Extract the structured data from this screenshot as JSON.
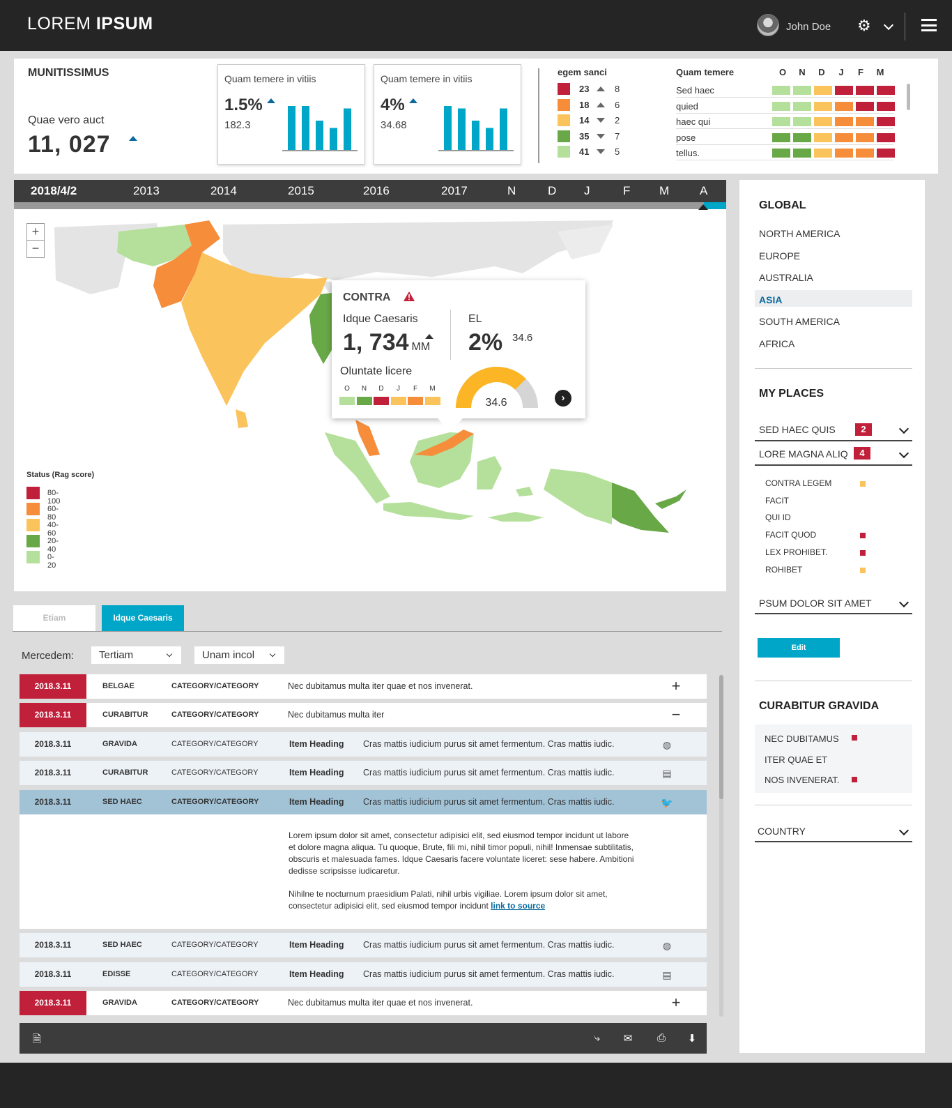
{
  "header": {
    "logo_light": "LOREM",
    "logo_bold": "IPSUM",
    "user_name": "John Doe"
  },
  "summary": {
    "title": "MUNITISSIMUS",
    "label": "Quae vero auct",
    "value": "11, 027"
  },
  "cards": [
    {
      "title": "Quam temere in vitiis",
      "pct": "1.5%",
      "sub": "182.3",
      "bars": [
        0.9,
        0.9,
        0.6,
        0.45,
        0.85
      ]
    },
    {
      "title": "Quam temere in vitiis",
      "pct": "4%",
      "sub": "34.68",
      "bars": [
        0.9,
        0.85,
        0.6,
        0.45,
        0.85
      ]
    }
  ],
  "egem": {
    "title": "egem sanci",
    "rows": [
      {
        "color": "#c0203a",
        "a": "23",
        "dir": "up",
        "b": "8"
      },
      {
        "color": "#f58d3b",
        "a": "18",
        "dir": "up",
        "b": "6"
      },
      {
        "color": "#fbc35c",
        "a": "14",
        "dir": "down",
        "b": "2"
      },
      {
        "color": "#68a847",
        "a": "35",
        "dir": "down",
        "b": "7"
      },
      {
        "color": "#b5e09b",
        "a": "41",
        "dir": "down",
        "b": "5"
      }
    ]
  },
  "quam": {
    "title": "Quam temere",
    "months": [
      "O",
      "N",
      "D",
      "J",
      "F",
      "M"
    ],
    "rows": [
      {
        "label": "Sed haec",
        "cells": [
          "#b5e09b",
          "#b5e09b",
          "#fbc35c",
          "#c0203a",
          "#c0203a",
          "#c0203a"
        ]
      },
      {
        "label": "quied",
        "cells": [
          "#b5e09b",
          "#b5e09b",
          "#fbc35c",
          "#f58d3b",
          "#c0203a",
          "#c0203a"
        ]
      },
      {
        "label": "haec qui",
        "cells": [
          "#b5e09b",
          "#b5e09b",
          "#fbc35c",
          "#f58d3b",
          "#f58d3b",
          "#c0203a"
        ]
      },
      {
        "label": "pose",
        "cells": [
          "#68a847",
          "#68a847",
          "#fbc35c",
          "#f58d3b",
          "#f58d3b",
          "#c0203a"
        ]
      },
      {
        "label": "tellus.",
        "cells": [
          "#68a847",
          "#68a847",
          "#fbc35c",
          "#f58d3b",
          "#f58d3b",
          "#c0203a"
        ]
      }
    ]
  },
  "timeline": [
    "2018/4/2",
    "2013",
    "2014",
    "2015",
    "2016",
    "2017",
    "N",
    "D",
    "J",
    "F",
    "M",
    "A"
  ],
  "map": {
    "zoom_in": "+",
    "zoom_out": "−",
    "legend": {
      "title": "Status (Rag score)",
      "items": [
        {
          "color": "#c0203a",
          "label": "80-100"
        },
        {
          "color": "#f58d3b",
          "label": "60-80"
        },
        {
          "color": "#fbc35c",
          "label": "40-60"
        },
        {
          "color": "#68a847",
          "label": "20-40"
        },
        {
          "color": "#b5e09b",
          "label": "0-20"
        }
      ]
    }
  },
  "popup": {
    "title": "CONTRA",
    "subtitle": "Idque Caesaris",
    "value": "1, 734",
    "unit": "MM",
    "el_label": "EL",
    "el_pct": "2%",
    "el_value": "34.6",
    "oluntate": "Oluntate licere",
    "months": [
      "O",
      "N",
      "D",
      "J",
      "F",
      "M"
    ],
    "cells": [
      "#b5e09b",
      "#68a847",
      "#c0203a",
      "#fbc35c",
      "#f58d3b",
      "#fbc35c"
    ],
    "gauge_value": "34.6",
    "gauge_fraction": 0.75
  },
  "sidebar": {
    "global_title": "GLOBAL",
    "regions": [
      "NORTH AMERICA",
      "EUROPE",
      "AUSTRALIA",
      "ASIA",
      "SOUTH AMERICA",
      "AFRICA"
    ],
    "active_region": "ASIA",
    "places_title": "MY PLACES",
    "groups": [
      {
        "label": "SED HAEC QUIS",
        "count": "2"
      },
      {
        "label": "LORE MAGNA ALIQ",
        "count": "4"
      }
    ],
    "items": [
      {
        "label": "CONTRA LEGEM",
        "color": "#fbc35c"
      },
      {
        "label": "FACIT",
        "color": ""
      },
      {
        "label": "QUI ID",
        "color": ""
      },
      {
        "label": "FACIT QUOD",
        "color": "#c0203a"
      },
      {
        "label": "LEX PROHIBET.",
        "color": "#c0203a"
      },
      {
        "label": "ROHIBET",
        "color": "#fbc35c"
      }
    ],
    "group3": "PSUM DOLOR SIT AMET",
    "edit": "Edit",
    "cura_title": "CURABITUR GRAVIDA",
    "cura_items": [
      {
        "label": "NEC DUBITAMUS",
        "color": "#c0203a"
      },
      {
        "label": "ITER QUAE ET",
        "color": ""
      },
      {
        "label": "NOS INVENERAT.",
        "color": "#c0203a"
      }
    ],
    "country": "COUNTRY"
  },
  "tabs": [
    "Etiam",
    "Idque Caesaris"
  ],
  "filters": {
    "label": "Mercedem:",
    "select1": "Tertiam",
    "select2": "Unam incol"
  },
  "table": [
    {
      "date": "2018.3.11",
      "name": "BELGAE",
      "cat": "CATEGORY/CATEGORY",
      "heading": "",
      "desc": "Nec dubitamus multa iter quae et nos invenerat.",
      "type": "red",
      "action": "+",
      "icon": ""
    },
    {
      "date": "2018.3.11",
      "name": "CURABITUR",
      "cat": "CATEGORY/CATEGORY",
      "heading": "",
      "desc": "Nec dubitamus multa iter",
      "type": "red",
      "action": "−",
      "icon": ""
    },
    {
      "date": "2018.3.11",
      "name": "GRAVIDA",
      "cat": "CATEGORY/CATEGORY",
      "heading": "Item Heading",
      "desc": "Cras mattis iudicium purus sit amet fermentum. Cras mattis iudic.",
      "type": "light",
      "action": "",
      "icon": "globe-icon"
    },
    {
      "date": "2018.3.11",
      "name": "CURABITUR",
      "cat": "CATEGORY/CATEGORY",
      "heading": "Item Heading",
      "desc": "Cras mattis iudicium purus sit amet fermentum. Cras mattis iudic.",
      "type": "light",
      "action": "",
      "icon": "news-icon"
    },
    {
      "date": "2018.3.11",
      "name": "SED HAEC",
      "cat": "CATEGORY/CATEGORY",
      "heading": "Item Heading",
      "desc": "Cras mattis iudicium purus sit amet fermentum. Cras mattis iudic.",
      "type": "selected",
      "action": "",
      "icon": "twitter-icon"
    },
    {
      "date": "2018.3.11",
      "name": "SED HAEC",
      "cat": "CATEGORY/CATEGORY",
      "heading": "Item Heading",
      "desc": "Cras mattis iudicium purus sit amet fermentum. Cras mattis iudic.",
      "type": "light",
      "action": "",
      "icon": "globe-icon"
    },
    {
      "date": "2018.3.11",
      "name": "EDISSE",
      "cat": "CATEGORY/CATEGORY",
      "heading": "Item Heading",
      "desc": "Cras mattis iudicium purus sit amet fermentum. Cras mattis iudic.",
      "type": "light",
      "action": "",
      "icon": "news-icon"
    },
    {
      "date": "2018.3.11",
      "name": "GRAVIDA",
      "cat": "CATEGORY/CATEGORY",
      "heading": "",
      "desc": "Nec dubitamus multa iter quae et nos invenerat.",
      "type": "red",
      "action": "+",
      "icon": ""
    }
  ],
  "detail": {
    "p1": "Lorem ipsum dolor sit amet, consectetur adipisici elit, sed eiusmod tempor incidunt ut labore et dolore magna aliqua. Tu quoque, Brute, fili mi, nihil timor populi, nihil! Inmensae subtilitatis, obscuris et malesuada fames. Idque Caesaris facere voluntate liceret: sese habere. Ambitioni dedisse scripsisse iudicaretur.",
    "p2": "Nihilne te nocturnum praesidium Palati, nihil urbis vigiliae. Lorem ipsum dolor sit amet, consectetur adipisici elit, sed eiusmod tempor incidunt ",
    "link": "link to source"
  },
  "colors": {
    "accent": "#00a6c8",
    "red": "#c0203a",
    "orange": "#f58d3b",
    "yellow": "#fbc35c",
    "green": "#68a847",
    "lightgreen": "#b5e09b"
  }
}
